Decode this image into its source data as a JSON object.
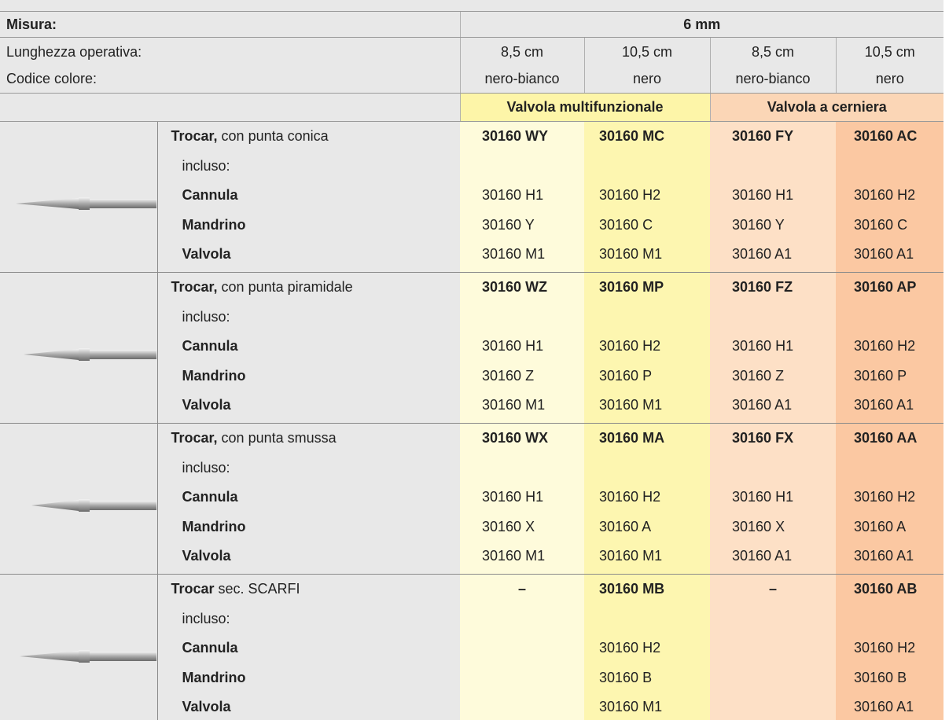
{
  "header": {
    "size_label": "Misura:",
    "size_value": "6 mm",
    "length_label": "Lunghezza operativa:",
    "color_label": "Codice colore:",
    "columns": [
      {
        "length": "8,5 cm",
        "color": "nero-bianco"
      },
      {
        "length": "10,5 cm",
        "color": "nero"
      },
      {
        "length": "8,5 cm",
        "color": "nero-bianco"
      },
      {
        "length": "10,5 cm",
        "color": "nero"
      }
    ],
    "valve_groups": [
      "Valvola multifunzionale",
      "Valvola a cerniera"
    ]
  },
  "rows": [
    {
      "title": "Trocar,",
      "title_rest": " con punta conica",
      "included": "incluso:",
      "codes": [
        "30160 WY",
        "30160 MC",
        "30160 FY",
        "30160 AC"
      ],
      "parts": [
        {
          "name": "Cannula",
          "codes": [
            "30160 H1",
            "30160 H2",
            "30160 H1",
            "30160 H2"
          ]
        },
        {
          "name": "Mandrino",
          "codes": [
            "30160 Y",
            "30160 C",
            "30160 Y",
            "30160 C"
          ]
        },
        {
          "name": "Valvola",
          "codes": [
            "30160 M1",
            "30160 M1",
            "30160 A1",
            "30160 A1"
          ]
        }
      ]
    },
    {
      "title": "Trocar,",
      "title_rest": " con punta piramidale",
      "included": "incluso:",
      "codes": [
        "30160 WZ",
        "30160 MP",
        "30160 FZ",
        "30160 AP"
      ],
      "parts": [
        {
          "name": "Cannula",
          "codes": [
            "30160 H1",
            "30160 H2",
            "30160 H1",
            "30160 H2"
          ]
        },
        {
          "name": "Mandrino",
          "codes": [
            "30160 Z",
            "30160 P",
            "30160 Z",
            "30160 P"
          ]
        },
        {
          "name": "Valvola",
          "codes": [
            "30160 M1",
            "30160 M1",
            "30160 A1",
            "30160 A1"
          ]
        }
      ]
    },
    {
      "title": "Trocar,",
      "title_rest": " con punta smussa",
      "included": "incluso:",
      "codes": [
        "30160 WX",
        "30160 MA",
        "30160 FX",
        "30160 AA"
      ],
      "parts": [
        {
          "name": "Cannula",
          "codes": [
            "30160 H1",
            "30160 H2",
            "30160 H1",
            "30160 H2"
          ]
        },
        {
          "name": "Mandrino",
          "codes": [
            "30160 X",
            "30160 A",
            "30160 X",
            "30160 A"
          ]
        },
        {
          "name": "Valvola",
          "codes": [
            "30160 M1",
            "30160 M1",
            "30160 A1",
            "30160 A1"
          ]
        }
      ]
    },
    {
      "title": "Trocar",
      "title_rest": " sec. SCARFI",
      "included": "incluso:",
      "codes": [
        "–",
        "30160 MB",
        "–",
        "30160 AB"
      ],
      "parts": [
        {
          "name": "Cannula",
          "codes": [
            null,
            "30160 H2",
            null,
            "30160 H2"
          ]
        },
        {
          "name": "Mandrino",
          "codes": [
            null,
            "30160 B",
            null,
            "30160 B"
          ]
        },
        {
          "name": "Valvola",
          "codes": [
            null,
            "30160 M1",
            null,
            "30160 A1"
          ]
        }
      ]
    }
  ]
}
